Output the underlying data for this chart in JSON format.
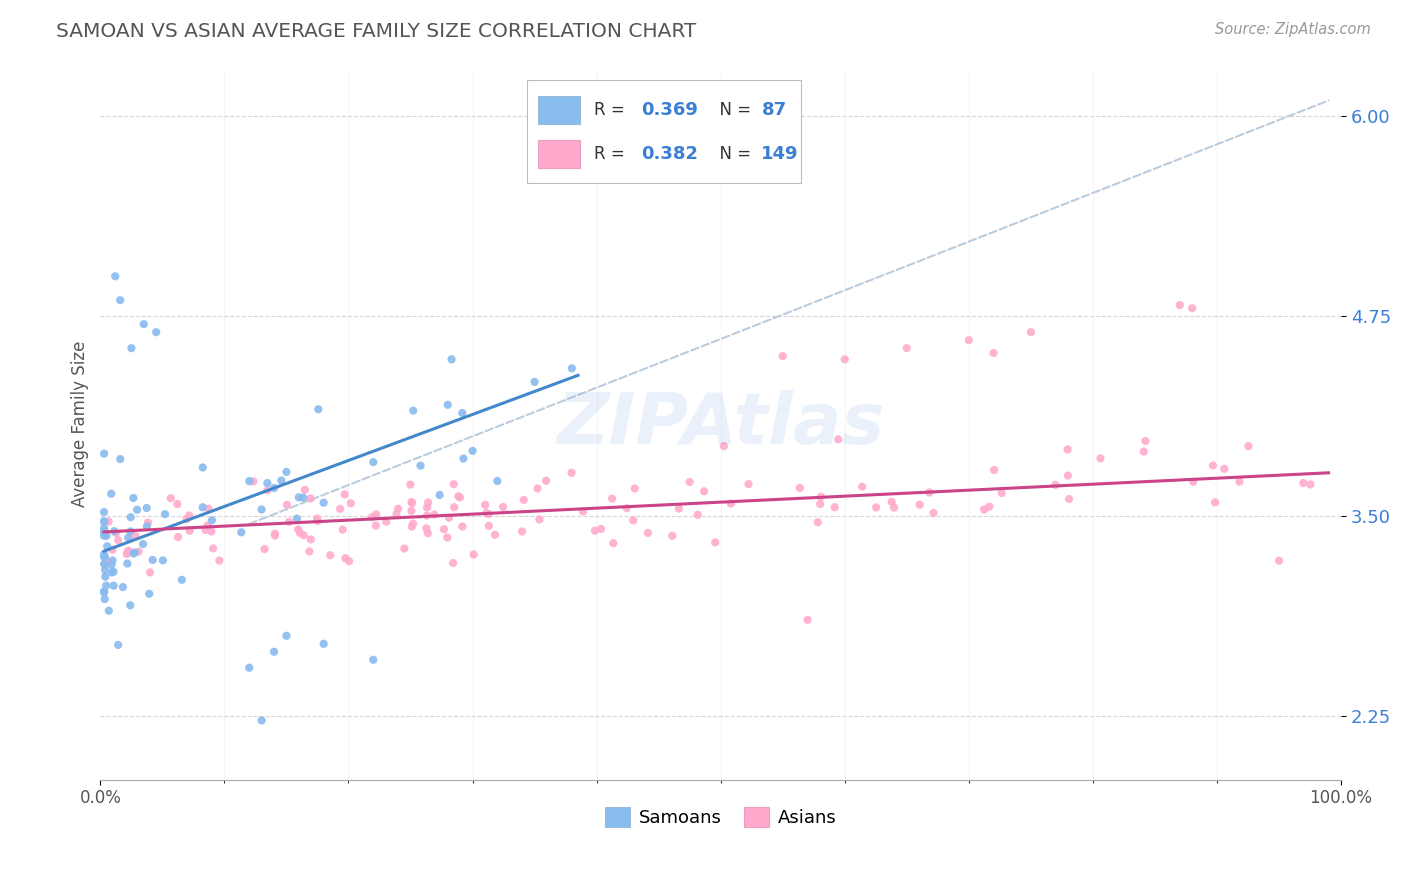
{
  "title": "SAMOAN VS ASIAN AVERAGE FAMILY SIZE CORRELATION CHART",
  "source": "Source: ZipAtlas.com",
  "ylabel": "Average Family Size",
  "xmin": 0.0,
  "xmax": 1.0,
  "ymin": 1.85,
  "ymax": 6.3,
  "yticks": [
    2.25,
    3.5,
    4.75,
    6.0
  ],
  "samoans_color": "#88bbee",
  "asians_color": "#ffaacc",
  "samoans_line_color": "#4488cc",
  "asians_line_color": "#cc4488",
  "legend_R_samoan": "0.369",
  "legend_N_samoan": "87",
  "legend_R_asian": "0.382",
  "legend_N_asian": "149",
  "legend_color": "#3a7fd5",
  "background_color": "#ffffff",
  "grid_color": "#cccccc",
  "title_color": "#555555",
  "diag_color": "#bbccdd",
  "watermark_text": "ZIPAtlas",
  "watermark_color": "#3a7fd5",
  "source_color": "#999999"
}
